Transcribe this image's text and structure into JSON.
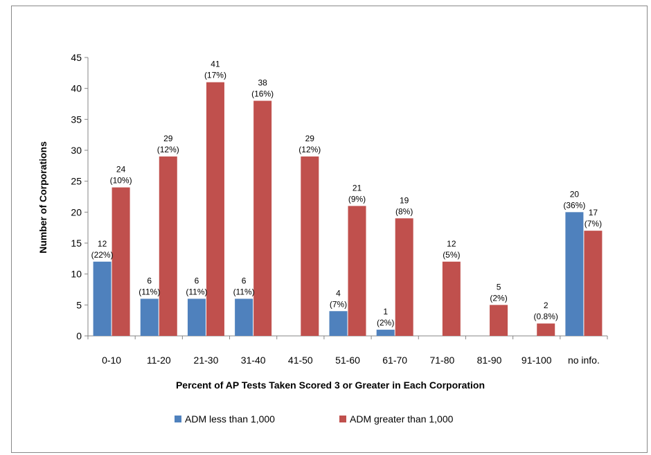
{
  "chart_data": {
    "type": "bar",
    "title": "",
    "xlabel": "Percent of AP Tests Taken Scored 3 or Greater in Each Corporation",
    "ylabel": "Number of Corporations",
    "ylim": [
      0,
      45
    ],
    "yticks": [
      0,
      5,
      10,
      15,
      20,
      25,
      30,
      35,
      40,
      45
    ],
    "grid": false,
    "legend_position": "bottom",
    "categories": [
      "0-10",
      "11-20",
      "21-30",
      "31-40",
      "41-50",
      "51-60",
      "61-70",
      "71-80",
      "81-90",
      "91-100",
      "no info."
    ],
    "series": [
      {
        "name": "ADM less than 1,000",
        "color": "#4F81BD",
        "values": [
          12,
          6,
          6,
          6,
          0,
          4,
          1,
          0,
          0,
          0,
          20
        ],
        "labels": [
          [
            "12",
            "(22%)"
          ],
          [
            "6",
            "(11%)"
          ],
          [
            "6",
            "(11%)"
          ],
          [
            "6",
            "(11%)"
          ],
          null,
          [
            "4",
            "(7%)"
          ],
          [
            "1",
            "(2%)"
          ],
          null,
          null,
          null,
          [
            "20",
            "(36%)"
          ]
        ]
      },
      {
        "name": "ADM greater than 1,000",
        "color": "#C0504D",
        "values": [
          24,
          29,
          41,
          38,
          29,
          21,
          19,
          12,
          5,
          2,
          17
        ],
        "labels": [
          [
            "24",
            "(10%)"
          ],
          [
            "29",
            "(12%)"
          ],
          [
            "41",
            "(17%)"
          ],
          [
            "38",
            "(16%)"
          ],
          [
            "29",
            "(12%)"
          ],
          [
            "21",
            "(9%)"
          ],
          [
            "19",
            "(8%)"
          ],
          [
            "12",
            "(5%)"
          ],
          [
            "5",
            "(2%)"
          ],
          [
            "2",
            "(0.8%)"
          ],
          [
            "17",
            "(7%)"
          ]
        ]
      }
    ]
  }
}
